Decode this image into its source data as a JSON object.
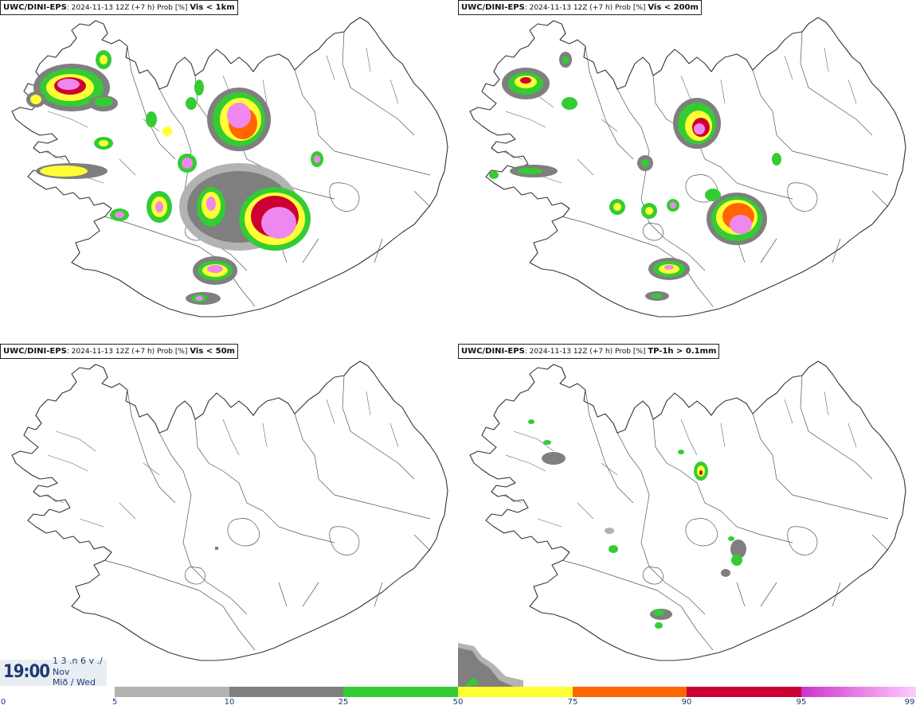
{
  "panels": [
    {
      "model": "UWC/DINI-EPS",
      "info": ": 2024-11-13 12Z (+7 h) Prob [%]",
      "param": "Vis < 1km"
    },
    {
      "model": "UWC/DINI-EPS",
      "info": ": 2024-11-13 12Z (+7 h) Prob [%]",
      "param": "Vis < 200m"
    },
    {
      "model": "UWC/DINI-EPS",
      "info": ": 2024-11-13 12Z (+7 h) Prob [%]",
      "param": "Vis < 50m"
    },
    {
      "model": "UWC/DINI-EPS",
      "info": ": 2024-11-13 12Z (+7 h) Prob [%]",
      "param": "TP-1h > 0.1mm"
    }
  ],
  "time": {
    "clock": "19:00",
    "line1": "1 3 .n 6 v ./",
    "line2": "Nov",
    "line3": "Mið / Wed"
  },
  "legend": {
    "ticks": [
      "0",
      "5",
      "10",
      "25",
      "50",
      "75",
      "90",
      "95",
      "99"
    ],
    "colors": {
      "c5_10": "#b3b3b3",
      "c10_25": "#7f7f7f",
      "c25_50": "#33cc33",
      "c50_75": "#ffff33",
      "c75_90": "#ff6600",
      "c90_95": "#cc0033",
      "c95_99_start": "#cc33cc",
      "c95_99_end": "#ffccff"
    }
  },
  "probability_colors": {
    "light_grey": "#b3b3b3",
    "dark_grey": "#7f7f7f",
    "green": "#33cc33",
    "yellow": "#ffff33",
    "orange": "#ff6600",
    "red": "#cc0033",
    "pink": "#ee88ee"
  }
}
